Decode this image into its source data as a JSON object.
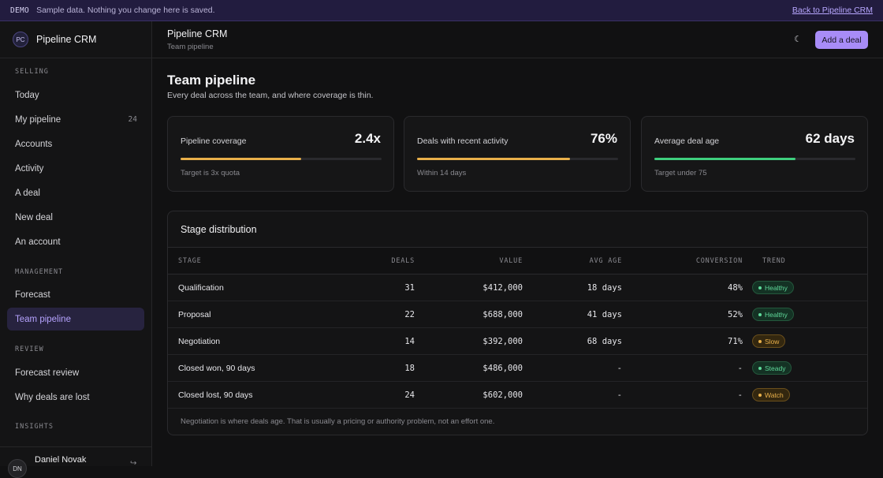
{
  "banner": {
    "tag": "DEMO",
    "message": "Sample data. Nothing you change here is saved.",
    "back_link": "Back to Pipeline CRM"
  },
  "brand": {
    "initials": "PC",
    "name": "Pipeline CRM"
  },
  "sidebar": {
    "sections": [
      {
        "title": "SELLING",
        "items": [
          {
            "label": "Today",
            "count": ""
          },
          {
            "label": "My pipeline",
            "count": "24"
          },
          {
            "label": "Accounts",
            "count": ""
          },
          {
            "label": "Activity",
            "count": ""
          },
          {
            "label": "A deal",
            "count": ""
          },
          {
            "label": "New deal",
            "count": ""
          },
          {
            "label": "An account",
            "count": ""
          }
        ]
      },
      {
        "title": "MANAGEMENT",
        "items": [
          {
            "label": "Forecast",
            "count": ""
          },
          {
            "label": "Team pipeline",
            "count": "",
            "active": true
          }
        ]
      },
      {
        "title": "REVIEW",
        "items": [
          {
            "label": "Forecast review",
            "count": ""
          },
          {
            "label": "Why deals are lost",
            "count": ""
          }
        ]
      },
      {
        "title": "INSIGHTS",
        "items": []
      }
    ],
    "user": {
      "initials": "DN",
      "name": "Daniel Novak",
      "logout_icon": "logout-icon"
    }
  },
  "topbar": {
    "title": "Pipeline CRM",
    "subtitle": "Team pipeline",
    "theme_icon": "moon-icon",
    "add_label": "Add a deal"
  },
  "page": {
    "title": "Team pipeline",
    "lead": "Every deal across the team, and where coverage is thin."
  },
  "metrics": [
    {
      "label": "Pipeline coverage",
      "value": "2.4x",
      "progress": 0.6,
      "color": "#e9b04a",
      "note": "Target is 3x quota"
    },
    {
      "label": "Deals with recent activity",
      "value": "76%",
      "progress": 0.76,
      "color": "#e9b04a",
      "note": "Within 14 days"
    },
    {
      "label": "Average deal age",
      "value": "62 days",
      "progress": 0.7,
      "color": "#3ecf7e",
      "note": "Target under 75"
    }
  ],
  "distribution": {
    "title": "Stage distribution",
    "headers": [
      "STAGE",
      "DEALS",
      "VALUE",
      "AVG AGE",
      "CONVERSION",
      "TREND"
    ],
    "rows": [
      {
        "stage": "Qualification",
        "deals": "31",
        "value": "$412,000",
        "age": "18 days",
        "conversion": "48%",
        "trend": "Healthy",
        "tone": "green"
      },
      {
        "stage": "Proposal",
        "deals": "22",
        "value": "$688,000",
        "age": "41 days",
        "conversion": "52%",
        "trend": "Healthy",
        "tone": "green"
      },
      {
        "stage": "Negotiation",
        "deals": "14",
        "value": "$392,000",
        "age": "68 days",
        "conversion": "71%",
        "trend": "Slow",
        "tone": "amber"
      },
      {
        "stage": "Closed won, 90 days",
        "deals": "18",
        "value": "$486,000",
        "age": "-",
        "conversion": "-",
        "trend": "Steady",
        "tone": "green"
      },
      {
        "stage": "Closed lost, 90 days",
        "deals": "24",
        "value": "$602,000",
        "age": "-",
        "conversion": "-",
        "trend": "Watch",
        "tone": "amber"
      }
    ],
    "footnote": "Negotiation is where deals age. That is usually a pricing or authority problem, not an effort one."
  },
  "tones": {
    "green": {
      "bg": "#143224",
      "border": "#24573c",
      "text": "#5fd99a"
    },
    "amber": {
      "bg": "#33270f",
      "border": "#6a4f1c",
      "text": "#e9b04a"
    }
  }
}
